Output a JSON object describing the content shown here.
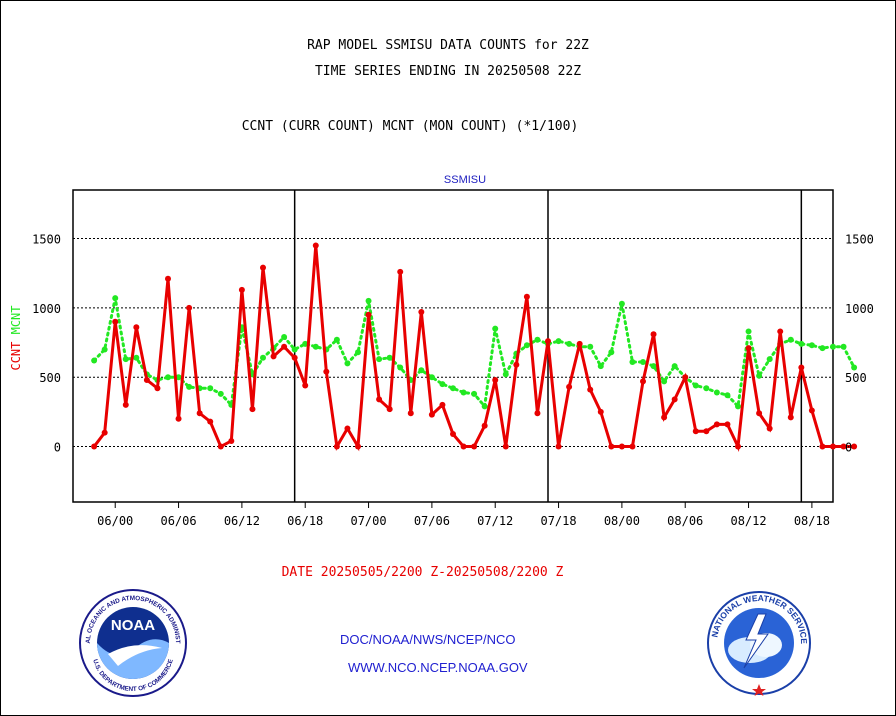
{
  "titles": {
    "line1": "RAP MODEL SSMISU DATA COUNTS for 22Z",
    "line2": "TIME SERIES ENDING IN 20250508 22Z",
    "line3": "CCNT (CURR COUNT) MCNT (MON COUNT) (*1/100)"
  },
  "footer": {
    "date_range": "DATE 20250505/2200 Z-20250508/2200 Z",
    "credit_line1": "DOC/NOAA/NWS/NCEP/NCO",
    "credit_line2": "WWW.NCO.NCEP.NOAA.GOV"
  },
  "logos": {
    "noaa_text": "NOAA",
    "noaa_ring_top": "NATIONAL OCEANIC AND ATMOSPHERIC ADMINISTRATION",
    "noaa_ring_bottom": "U.S. DEPARTMENT OF COMMERCE",
    "nws_ring": "NATIONAL WEATHER SERVICE"
  },
  "colors": {
    "ccnt": "#e80000",
    "mcnt": "#22e822",
    "plot_title": "#2020c0",
    "credits": "#2020d0"
  },
  "chart_data": {
    "type": "line",
    "plot_title": "SSMISU",
    "ylabel_left": [
      "CCNT",
      "MCNT"
    ],
    "ylim": [
      -400,
      1850
    ],
    "yticks": [
      0,
      500,
      1000,
      1500
    ],
    "xlim": [
      -2,
      70
    ],
    "x_tick_positions": [
      2,
      8,
      14,
      20,
      26,
      32,
      38,
      44,
      50,
      56,
      62,
      68
    ],
    "x_tick_labels": [
      "06/00",
      "06/06",
      "06/12",
      "06/18",
      "07/00",
      "07/06",
      "07/12",
      "07/18",
      "08/00",
      "08/06",
      "08/12",
      "08/18"
    ],
    "day_boundaries": [
      19,
      43,
      67
    ],
    "grid": "horizontal dotted at y ticks",
    "series": [
      {
        "name": "CCNT",
        "style": "solid",
        "values": [
          0,
          100,
          900,
          300,
          860,
          480,
          420,
          1210,
          200,
          1000,
          240,
          180,
          0,
          40,
          1130,
          270,
          1290,
          650,
          720,
          640,
          440,
          1450,
          540,
          0,
          130,
          0,
          950,
          340,
          270,
          1260,
          240,
          970,
          230,
          300,
          90,
          0,
          0,
          150,
          480,
          0,
          590,
          1080,
          240,
          760,
          0,
          430,
          740,
          410,
          250,
          0,
          0,
          0,
          470,
          810,
          210,
          340,
          500,
          110,
          110,
          160,
          160,
          0,
          710,
          240,
          130,
          830,
          210,
          570,
          260,
          0,
          0,
          0,
          0
        ]
      },
      {
        "name": "MCNT",
        "style": "dotted",
        "values": [
          620,
          700,
          1070,
          630,
          640,
          520,
          480,
          500,
          500,
          430,
          420,
          420,
          380,
          300,
          860,
          520,
          640,
          710,
          790,
          700,
          740,
          720,
          700,
          770,
          600,
          680,
          1050,
          630,
          640,
          570,
          480,
          550,
          500,
          450,
          420,
          390,
          380,
          290,
          850,
          520,
          670,
          730,
          770,
          740,
          760,
          740,
          720,
          720,
          580,
          680,
          1030,
          610,
          610,
          580,
          470,
          580,
          500,
          440,
          420,
          390,
          370,
          290,
          830,
          510,
          630,
          740,
          770,
          740,
          730,
          710,
          720,
          720,
          570
        ]
      }
    ],
    "x_start": 0
  }
}
